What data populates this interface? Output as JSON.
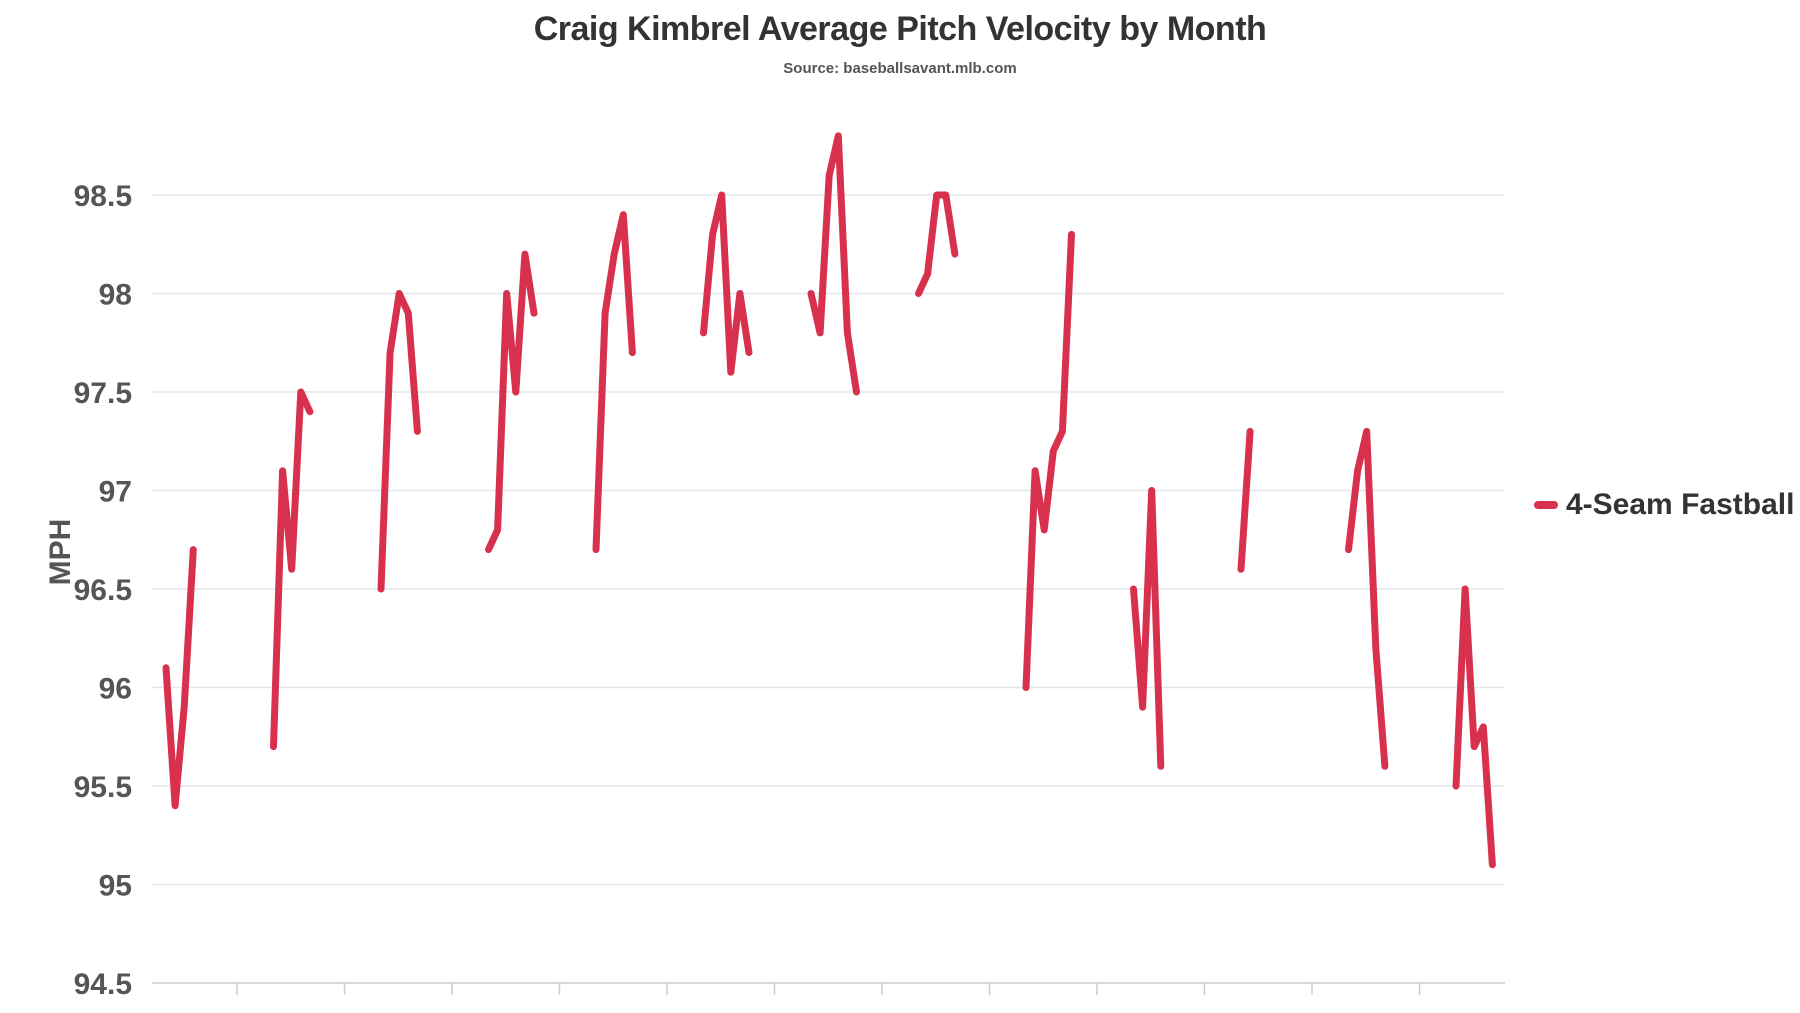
{
  "chart_data": {
    "type": "line",
    "title": "Craig Kimbrel Average Pitch Velocity by Month",
    "subtitle": "Source: baseballsavant.mlb.com",
    "xlabel": "",
    "ylabel": "MPH",
    "ylim": [
      94.5,
      98.9
    ],
    "y_ticks": [
      "94.5",
      "95",
      "95.5",
      "96",
      "96.5",
      "97",
      "97.5",
      "98",
      "98.5"
    ],
    "grid": true,
    "legend": "right",
    "x_axis_periods": 13,
    "series": [
      {
        "name": "4-Seam Fastball",
        "color": "#d7314e",
        "segments": [
          [
            96.1,
            95.4,
            95.9,
            96.7
          ],
          [
            95.7,
            97.1,
            96.6,
            97.5,
            97.4
          ],
          [
            96.5,
            97.7,
            98.0,
            97.9,
            97.3
          ],
          [
            96.7,
            96.8,
            98.0,
            97.5,
            98.2,
            97.9
          ],
          [
            96.7,
            97.9,
            98.2,
            98.4,
            97.7
          ],
          [
            97.8,
            98.3,
            98.5,
            97.6,
            98.0,
            97.7
          ],
          [
            98.0,
            97.8,
            98.6,
            98.8,
            97.8,
            97.5
          ],
          [
            98.0,
            98.1,
            98.5,
            98.5,
            98.2
          ],
          [
            96.0,
            97.1,
            96.8,
            97.2,
            97.3,
            98.3
          ],
          [
            96.5,
            95.9,
            97.0,
            95.6
          ],
          [
            96.6,
            97.3
          ],
          [
            96.7,
            97.1,
            97.3,
            96.2,
            95.6
          ],
          [
            95.5,
            96.5,
            95.7,
            95.8,
            95.1
          ]
        ]
      }
    ]
  }
}
